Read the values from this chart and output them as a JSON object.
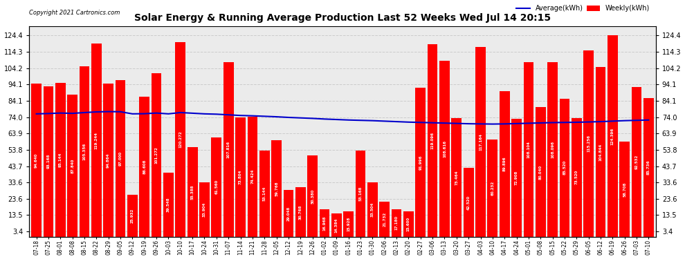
{
  "title": "Solar Energy & Running Average Production Last 52 Weeks Wed Jul 14 20:15",
  "copyright": "Copyright 2021 Cartronics.com",
  "legend_avg": "Average(kWh)",
  "legend_weekly": "Weekly(kWh)",
  "bar_color": "#ff0000",
  "avg_line_color": "#0000cc",
  "background_color": "#ffffff",
  "grid_color": "#cccccc",
  "yticks": [
    3.4,
    13.5,
    23.6,
    33.6,
    43.7,
    53.8,
    63.9,
    74.0,
    84.1,
    94.1,
    104.2,
    114.3,
    124.4
  ],
  "dates": [
    "07-18",
    "07-25",
    "08-01",
    "08-08",
    "08-15",
    "08-22",
    "08-29",
    "09-05",
    "09-12",
    "09-19",
    "09-26",
    "10-03",
    "10-10",
    "10-17",
    "10-24",
    "10-31",
    "11-07",
    "11-14",
    "11-21",
    "11-28",
    "12-05",
    "12-12",
    "12-19",
    "12-26",
    "01-02",
    "01-09",
    "01-16",
    "01-23",
    "01-30",
    "02-06",
    "02-13",
    "02-20",
    "02-27",
    "03-06",
    "03-13",
    "03-20",
    "03-27",
    "04-03",
    "04-10",
    "04-17",
    "04-24",
    "05-01",
    "05-08",
    "05-15",
    "05-22",
    "05-29",
    "06-05",
    "06-12",
    "06-19",
    "06-26",
    "07-03",
    "07-10"
  ],
  "values": [
    94.64,
    93.168,
    95.144,
    87.84,
    105.356,
    119.244,
    94.864,
    97.0,
    25.932,
    86.608,
    101.272,
    39.548,
    120.272,
    55.388,
    33.904,
    61.56,
    107.816,
    73.804,
    74.424,
    53.144,
    59.768,
    29.048,
    30.768,
    50.38,
    16.968,
    14.384,
    15.928,
    53.168,
    33.504,
    21.732,
    17.18,
    15.6,
    91.996,
    119.096,
    108.616,
    73.464,
    42.52,
    117.164,
    60.232,
    89.896,
    72.908,
    108.104,
    80.04,
    108.096,
    85.52,
    73.52,
    115.256,
    104.844,
    124.396,
    58.708,
    92.532,
    85.736
  ],
  "avg_values": [
    76.0,
    76.2,
    76.5,
    76.3,
    76.8,
    77.2,
    77.4,
    77.3,
    76.0,
    76.1,
    76.5,
    76.0,
    76.8,
    76.4,
    76.0,
    75.8,
    75.4,
    75.0,
    74.8,
    74.5,
    74.2,
    73.8,
    73.5,
    73.2,
    72.8,
    72.5,
    72.2,
    72.0,
    71.8,
    71.5,
    71.2,
    70.9,
    70.7,
    70.5,
    70.3,
    70.1,
    69.9,
    69.8,
    69.7,
    69.8,
    70.0,
    70.2,
    70.4,
    70.6,
    70.7,
    70.8,
    71.0,
    71.2,
    71.5,
    71.8,
    72.0,
    72.2
  ]
}
